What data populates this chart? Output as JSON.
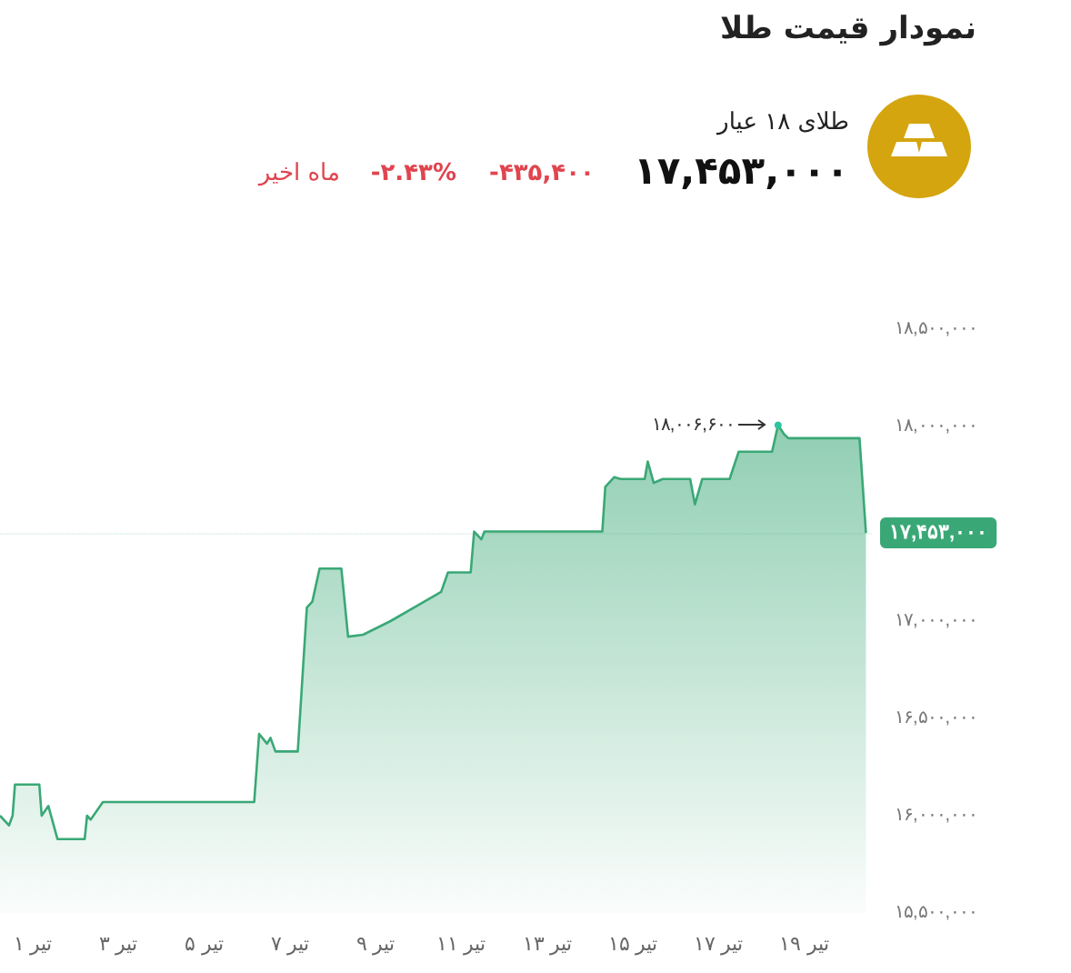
{
  "chart_data": {
    "type": "area",
    "title": "نمودار قیمت طلا",
    "subtitle": "طلای ۱۸ عیار",
    "annotations": [
      "۱۷,۴۵۳,۰۰۰",
      "-۴۳۵,۴۰۰",
      "-۲.۴۳%",
      "ماه اخیر",
      {
        "text": "۱۸,۰۰۶,۶۰۰",
        "x": 18.39,
        "y": 18006600
      }
    ],
    "ref_lines": [
      {
        "axis": "y",
        "value": 17453000,
        "label": "۱۷,۴۵۳,۰۰۰",
        "color": "#3aa876"
      }
    ],
    "color": "#3aa876",
    "marker": "none",
    "grid": false,
    "x": [
      0.24,
      0.449,
      0.534,
      0.589,
      1.157,
      1.212,
      1.369,
      1.58,
      2.216,
      2.271,
      2.356,
      2.64,
      6.17,
      6.284,
      6.47,
      6.55,
      6.665,
      7.186,
      7.398,
      7.525,
      7.695,
      8.203,
      8.36,
      8.71,
      9.35,
      9.98,
      10.53,
      10.69,
      11.22,
      11.3,
      11.47,
      11.54,
      14.29,
      14.36,
      14.57,
      14.72,
      15.28,
      15.35,
      15.49,
      15.7,
      16.34,
      16.45,
      16.62,
      17.26,
      17.47,
      18.25,
      18.39,
      18.53,
      18.63,
      20.29,
      20.44
    ],
    "values": [
      16000000,
      15950000,
      16000000,
      16160000,
      16160000,
      16000000,
      16050000,
      15880000,
      15880000,
      16000000,
      15980000,
      16070000,
      16070000,
      16420000,
      16370000,
      16400000,
      16330000,
      16330000,
      17070000,
      17100000,
      17270000,
      17270000,
      16920000,
      16930000,
      17000000,
      17080000,
      17150000,
      17250000,
      17250000,
      17460000,
      17420000,
      17460000,
      17460000,
      17690000,
      17740000,
      17730000,
      17730000,
      17820000,
      17710000,
      17730000,
      17730000,
      17600000,
      17730000,
      17730000,
      17870000,
      17870000,
      18006600,
      17960000,
      17940000,
      17940000,
      17453000
    ],
    "xlim": [
      0.24,
      20.6
    ],
    "xticks": [
      {
        "value": 1,
        "label": "۱ تیر"
      },
      {
        "value": 3,
        "label": "۳ تیر"
      },
      {
        "value": 5,
        "label": "۵ تیر"
      },
      {
        "value": 7,
        "label": "۷ تیر"
      },
      {
        "value": 9,
        "label": "۹ تیر"
      },
      {
        "value": 11,
        "label": "۱۱ تیر"
      },
      {
        "value": 13,
        "label": "۱۳ تیر"
      },
      {
        "value": 15,
        "label": "۱۵ تیر"
      },
      {
        "value": 17,
        "label": "۱۷ تیر"
      },
      {
        "value": 19,
        "label": "۱۹ تیر"
      }
    ],
    "ylim": [
      15500000,
      18500000
    ],
    "yticks": [
      {
        "value": 15500000,
        "label": "۱۵,۵۰۰,۰۰۰"
      },
      {
        "value": 16000000,
        "label": "۱۶,۰۰۰,۰۰۰"
      },
      {
        "value": 16500000,
        "label": "۱۶,۵۰۰,۰۰۰"
      },
      {
        "value": 17000000,
        "label": "۱۷,۰۰۰,۰۰۰"
      },
      {
        "value": 18000000,
        "label": "۱۸,۰۰۰,۰۰۰"
      },
      {
        "value": 18500000,
        "label": "۱۸,۵۰۰,۰۰۰"
      }
    ]
  }
}
